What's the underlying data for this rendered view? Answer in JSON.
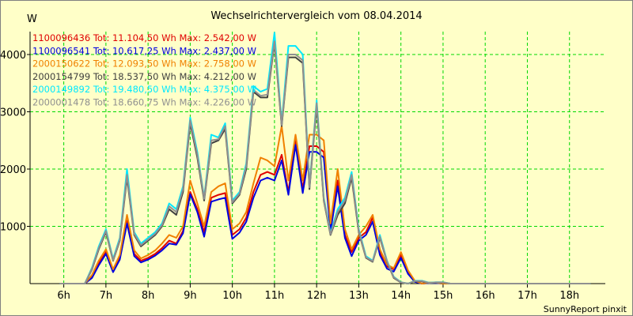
{
  "chart_data": {
    "type": "line",
    "title": "Wechselrichtervergleich vom 08.04.2014",
    "ylabel": "W",
    "xlabel": "",
    "footer": "SunnyReport pinxit",
    "grid": true,
    "legend_position": "top-left",
    "xlim": [
      5.2,
      18.85
    ],
    "ylim": [
      0,
      4400
    ],
    "x_ticks": [
      6,
      7,
      8,
      9,
      10,
      11,
      12,
      13,
      14,
      15,
      16,
      17,
      18
    ],
    "x_tick_labels": [
      "6h",
      "7h",
      "8h",
      "9h",
      "10h",
      "11h",
      "12h",
      "13h",
      "14h",
      "15h",
      "16h",
      "17h",
      "18h"
    ],
    "y_ticks": [
      1000,
      2000,
      3000,
      4000
    ],
    "y_tick_labels": [
      "1000",
      "2000",
      "3000",
      "4000"
    ],
    "x": [
      5.9,
      6.25,
      6.5,
      6.67,
      6.83,
      7.0,
      7.17,
      7.33,
      7.5,
      7.67,
      7.83,
      8.0,
      8.17,
      8.33,
      8.5,
      8.67,
      8.83,
      9.0,
      9.17,
      9.33,
      9.5,
      9.67,
      9.83,
      10.0,
      10.17,
      10.33,
      10.5,
      10.67,
      10.83,
      11.0,
      11.17,
      11.33,
      11.5,
      11.67,
      11.83,
      12.0,
      12.17,
      12.33,
      12.5,
      12.67,
      12.83,
      13.0,
      13.17,
      13.33,
      13.5,
      13.67,
      13.83,
      14.0,
      14.17,
      14.33,
      14.5,
      14.67,
      14.83,
      15.0,
      15.17,
      15.33,
      15.5,
      15.67,
      15.83,
      16.0,
      16.17,
      16.33,
      16.5,
      16.67,
      16.83,
      17.0,
      17.17,
      17.33,
      17.5,
      17.67,
      17.83,
      18.0,
      18.17,
      18.33,
      18.5
    ],
    "series": [
      {
        "name": "1100096436",
        "legend": "1100096436 Tot: 11.104,50 Wh Max: 2.542,00 W",
        "color": "#e00000",
        "values": [
          0,
          0,
          0,
          120,
          350,
          550,
          220,
          450,
          1100,
          520,
          400,
          450,
          520,
          620,
          750,
          700,
          920,
          1600,
          1300,
          900,
          1500,
          1550,
          1580,
          850,
          950,
          1150,
          1600,
          1900,
          1950,
          1900,
          2250,
          1600,
          2500,
          1650,
          2400,
          2400,
          2300,
          1000,
          1800,
          850,
          550,
          800,
          900,
          1150,
          550,
          300,
          250,
          500,
          200,
          40,
          0,
          15,
          15,
          0,
          0,
          0,
          0,
          0,
          0,
          0,
          0,
          0,
          0,
          0,
          0,
          0,
          0,
          0,
          0,
          0,
          0,
          0,
          0,
          0,
          0
        ]
      },
      {
        "name": "1100096541",
        "legend": "1100096541 Tot: 10.617,25 Wh Max: 2.437,00 W",
        "color": "#0000e0",
        "values": [
          0,
          0,
          0,
          100,
          320,
          520,
          200,
          420,
          1050,
          480,
          370,
          420,
          490,
          580,
          700,
          680,
          880,
          1560,
          1250,
          820,
          1430,
          1470,
          1500,
          780,
          890,
          1080,
          1500,
          1800,
          1850,
          1800,
          2150,
          1550,
          2420,
          1580,
          2300,
          2300,
          2200,
          920,
          1700,
          800,
          480,
          750,
          850,
          1080,
          500,
          260,
          210,
          450,
          170,
          30,
          0,
          10,
          10,
          0,
          0,
          0,
          0,
          0,
          0,
          0,
          0,
          0,
          0,
          0,
          0,
          0,
          0,
          0,
          0,
          0,
          0,
          0,
          0,
          0,
          0
        ]
      },
      {
        "name": "2000150622",
        "legend": "2000150622 Tot: 12.093,50 Wh Max: 2.758,00 W",
        "color": "#f08000",
        "values": [
          0,
          0,
          0,
          150,
          400,
          600,
          250,
          500,
          1200,
          580,
          440,
          500,
          580,
          700,
          850,
          800,
          1000,
          1800,
          1400,
          1000,
          1600,
          1700,
          1750,
          950,
          1050,
          1250,
          1750,
          2200,
          2150,
          2050,
          2750,
          1800,
          2600,
          1800,
          2600,
          2600,
          2500,
          1050,
          2000,
          950,
          600,
          850,
          1000,
          1200,
          600,
          330,
          270,
          550,
          230,
          50,
          0,
          20,
          20,
          0,
          0,
          0,
          0,
          0,
          0,
          0,
          0,
          0,
          0,
          0,
          0,
          0,
          0,
          0,
          0,
          0,
          0,
          0,
          0,
          0,
          0
        ]
      },
      {
        "name": "2000154799",
        "legend": "2000154799 Tot: 18.537,50 Wh Max: 4.212,00 W",
        "color": "#404040",
        "values": [
          0,
          0,
          0,
          250,
          600,
          900,
          400,
          750,
          1850,
          850,
          650,
          750,
          850,
          1000,
          1300,
          1200,
          1600,
          2800,
          2200,
          1450,
          2450,
          2500,
          2700,
          1400,
          1550,
          2000,
          3350,
          3250,
          3250,
          4200,
          2750,
          3950,
          3950,
          3850,
          1650,
          3100,
          1450,
          850,
          1200,
          1400,
          1850,
          900,
          450,
          380,
          800,
          380,
          100,
          20,
          0,
          40,
          40,
          10,
          20,
          20,
          0,
          0,
          0,
          0,
          0,
          0,
          0,
          0,
          0,
          0,
          0,
          0,
          0,
          0,
          0,
          0,
          0,
          0,
          0,
          0,
          0
        ]
      },
      {
        "name": "2000149892",
        "legend": "2000149892 Tot: 19.480,50 Wh Max: 4.375,00 W",
        "color": "#00e8ff",
        "values": [
          0,
          0,
          0,
          280,
          650,
          950,
          430,
          800,
          2000,
          900,
          700,
          800,
          900,
          1050,
          1400,
          1300,
          1700,
          2900,
          2300,
          1500,
          2600,
          2550,
          2800,
          1450,
          1600,
          2100,
          3450,
          3350,
          3400,
          4380,
          2800,
          4150,
          4150,
          4000,
          1700,
          3200,
          1500,
          880,
          1300,
          1500,
          1950,
          950,
          480,
          400,
          850,
          400,
          120,
          25,
          0,
          50,
          50,
          15,
          25,
          25,
          0,
          0,
          0,
          0,
          0,
          0,
          0,
          0,
          0,
          0,
          0,
          0,
          0,
          0,
          0,
          0,
          0,
          0,
          0,
          0,
          0
        ]
      },
      {
        "name": "2000001478",
        "legend": "2000001478 Tot: 18.660,75 Wh Max: 4.226,00 W",
        "color": "#909090",
        "values": [
          0,
          0,
          0,
          260,
          620,
          920,
          410,
          770,
          1900,
          870,
          670,
          770,
          870,
          1020,
          1350,
          1250,
          1650,
          2850,
          2250,
          1480,
          2500,
          2520,
          2750,
          1420,
          1570,
          2050,
          3380,
          3280,
          3300,
          4230,
          2770,
          4000,
          4000,
          3900,
          1680,
          3150,
          1470,
          860,
          1250,
          1450,
          1900,
          920,
          460,
          390,
          820,
          390,
          110,
          22,
          0,
          45,
          45,
          12,
          22,
          22,
          0,
          0,
          0,
          0,
          0,
          0,
          0,
          0,
          0,
          0,
          0,
          0,
          0,
          0,
          0,
          0,
          0,
          0,
          0,
          0,
          0
        ]
      }
    ]
  }
}
